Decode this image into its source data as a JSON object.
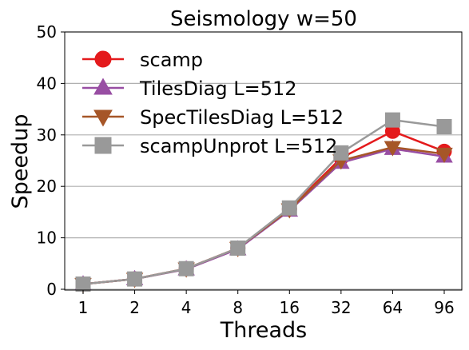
{
  "chart_data": {
    "type": "line",
    "title": "Seismology w=50",
    "xlabel": "Threads",
    "ylabel": "Speedup",
    "categories": [
      "1",
      "2",
      "4",
      "8",
      "16",
      "32",
      "64",
      "96"
    ],
    "ylim": [
      0,
      50
    ],
    "yticks": [
      0,
      10,
      20,
      30,
      40,
      50
    ],
    "grid": "horizontal",
    "legend_position": "top-left",
    "series": [
      {
        "name": "scamp",
        "color": "#e41a1c",
        "marker": "circle",
        "values": [
          1.0,
          2.0,
          4.0,
          8.0,
          15.6,
          25.5,
          30.7,
          26.8
        ]
      },
      {
        "name": "TilesDiag L=512",
        "color": "#984ea3",
        "marker": "triangle-up",
        "values": [
          1.0,
          2.0,
          3.9,
          7.8,
          15.3,
          24.6,
          27.3,
          25.8
        ]
      },
      {
        "name": "SpecTilesDiag L=512",
        "color": "#a65628",
        "marker": "triangle-down",
        "values": [
          1.0,
          2.0,
          4.0,
          8.0,
          15.5,
          25.0,
          27.6,
          26.3
        ]
      },
      {
        "name": "scampUnprot L=512",
        "color": "#999999",
        "marker": "square",
        "values": [
          1.0,
          2.0,
          4.0,
          8.0,
          15.8,
          26.5,
          32.9,
          31.6
        ]
      }
    ]
  }
}
